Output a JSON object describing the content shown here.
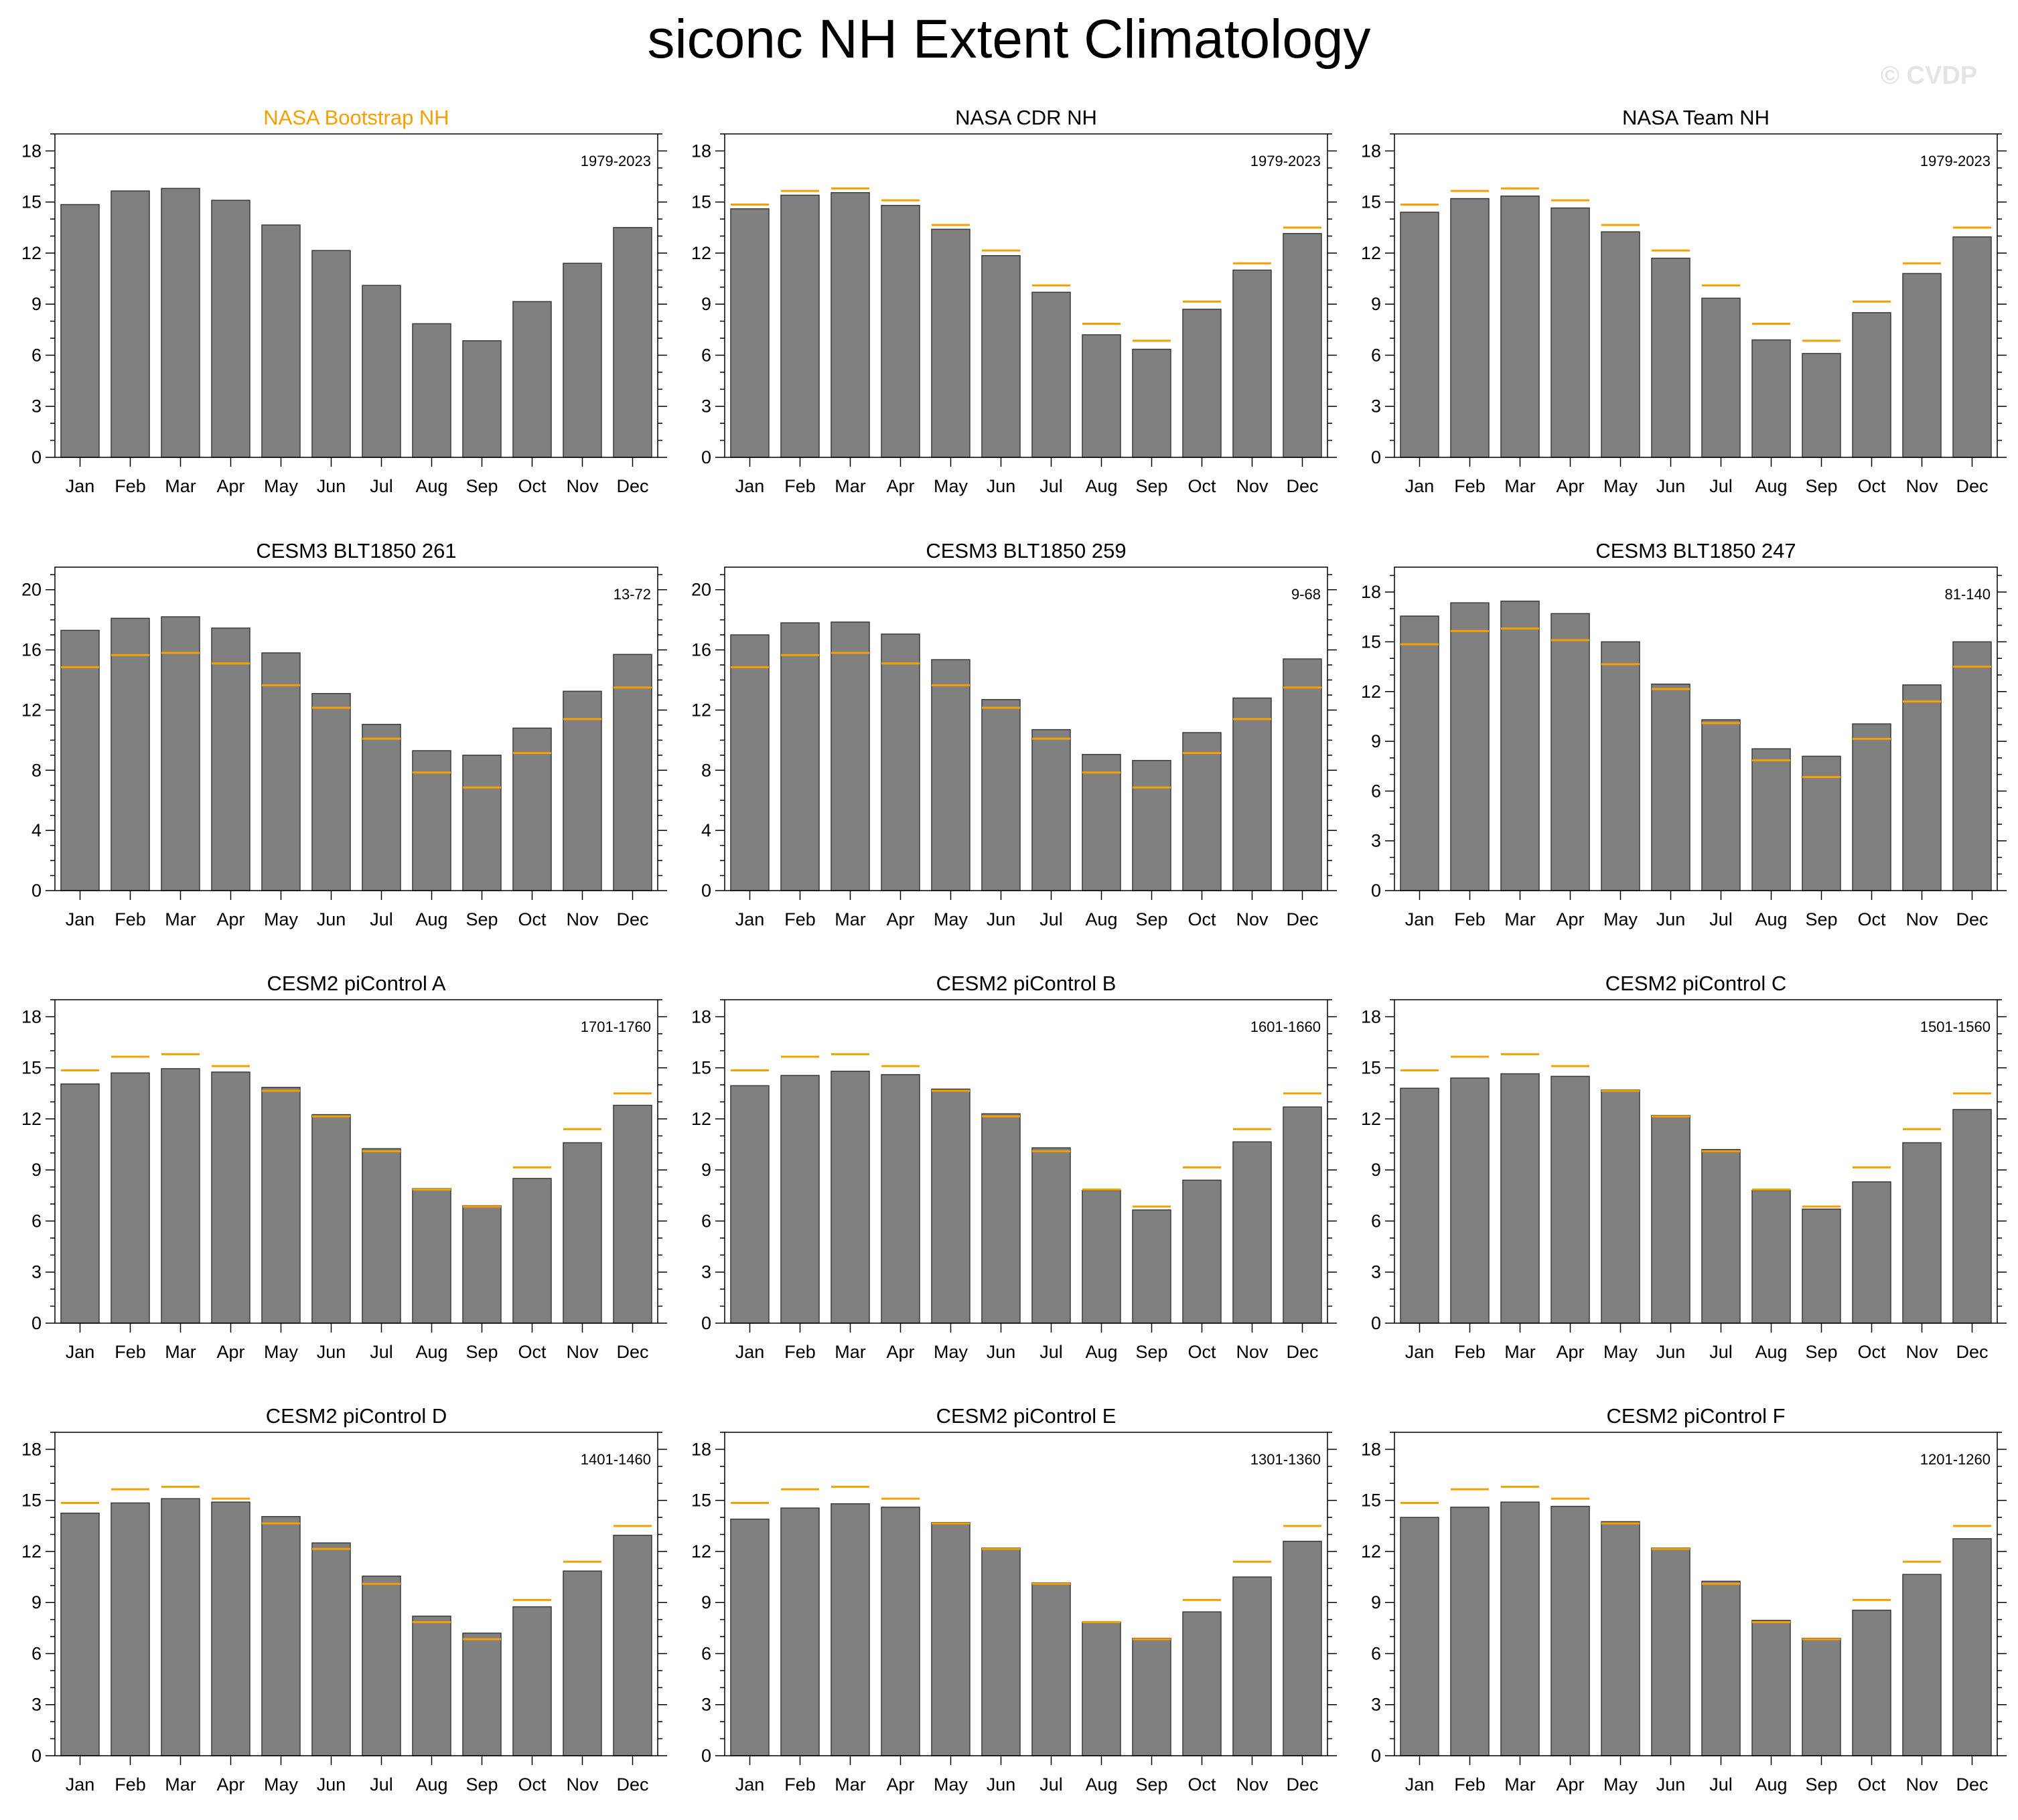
{
  "title": "siconc NH Extent Climatology",
  "watermark": "© CVDP",
  "colors": {
    "bar": "#808080",
    "bar_edge": "#3a3a3a",
    "reference": "#f5a000",
    "highlight_title": "#f5a000",
    "text": "#000000"
  },
  "chart_data": [
    {
      "type": "bar",
      "title": "NASA Bootstrap NH",
      "title_highlight": true,
      "period": "1979-2023",
      "categories": [
        "Jan",
        "Feb",
        "Mar",
        "Apr",
        "May",
        "Jun",
        "Jul",
        "Aug",
        "Sep",
        "Oct",
        "Nov",
        "Dec"
      ],
      "values": [
        14.85,
        15.65,
        15.8,
        15.1,
        13.65,
        12.15,
        10.1,
        7.85,
        6.85,
        9.15,
        11.4,
        13.5
      ],
      "reference": null,
      "ylim": [
        0,
        19
      ],
      "yticks": [
        0,
        3,
        6,
        9,
        12,
        15,
        18
      ],
      "yminor": 1
    },
    {
      "type": "bar",
      "title": "NASA CDR NH",
      "period": "1979-2023",
      "categories": [
        "Jan",
        "Feb",
        "Mar",
        "Apr",
        "May",
        "Jun",
        "Jul",
        "Aug",
        "Sep",
        "Oct",
        "Nov",
        "Dec"
      ],
      "values": [
        14.6,
        15.4,
        15.55,
        14.8,
        13.4,
        11.85,
        9.7,
        7.2,
        6.35,
        8.7,
        11.0,
        13.15
      ],
      "reference": [
        14.85,
        15.65,
        15.8,
        15.1,
        13.65,
        12.15,
        10.1,
        7.85,
        6.85,
        9.15,
        11.4,
        13.5
      ],
      "ylim": [
        0,
        19
      ],
      "yticks": [
        0,
        3,
        6,
        9,
        12,
        15,
        18
      ],
      "yminor": 1
    },
    {
      "type": "bar",
      "title": "NASA Team NH",
      "period": "1979-2023",
      "categories": [
        "Jan",
        "Feb",
        "Mar",
        "Apr",
        "May",
        "Jun",
        "Jul",
        "Aug",
        "Sep",
        "Oct",
        "Nov",
        "Dec"
      ],
      "values": [
        14.4,
        15.2,
        15.35,
        14.65,
        13.25,
        11.7,
        9.35,
        6.9,
        6.1,
        8.5,
        10.8,
        12.95
      ],
      "reference": [
        14.85,
        15.65,
        15.8,
        15.1,
        13.65,
        12.15,
        10.1,
        7.85,
        6.85,
        9.15,
        11.4,
        13.5
      ],
      "ylim": [
        0,
        19
      ],
      "yticks": [
        0,
        3,
        6,
        9,
        12,
        15,
        18
      ],
      "yminor": 1
    },
    {
      "type": "bar",
      "title": "CESM3 BLT1850 261",
      "period": "13-72",
      "categories": [
        "Jan",
        "Feb",
        "Mar",
        "Apr",
        "May",
        "Jun",
        "Jul",
        "Aug",
        "Sep",
        "Oct",
        "Nov",
        "Dec"
      ],
      "values": [
        17.3,
        18.1,
        18.2,
        17.45,
        15.8,
        13.1,
        11.05,
        9.3,
        9.0,
        10.8,
        13.25,
        15.7
      ],
      "reference": [
        14.85,
        15.65,
        15.8,
        15.1,
        13.65,
        12.15,
        10.1,
        7.85,
        6.85,
        9.15,
        11.4,
        13.5
      ],
      "ylim": [
        0,
        21.5
      ],
      "yticks": [
        0,
        4,
        8,
        12,
        16,
        20
      ],
      "yminor": 1
    },
    {
      "type": "bar",
      "title": "CESM3 BLT1850 259",
      "period": "9-68",
      "categories": [
        "Jan",
        "Feb",
        "Mar",
        "Apr",
        "May",
        "Jun",
        "Jul",
        "Aug",
        "Sep",
        "Oct",
        "Nov",
        "Dec"
      ],
      "values": [
        17.0,
        17.8,
        17.85,
        17.05,
        15.35,
        12.7,
        10.7,
        9.05,
        8.65,
        10.5,
        12.8,
        15.4
      ],
      "reference": [
        14.85,
        15.65,
        15.8,
        15.1,
        13.65,
        12.15,
        10.1,
        7.85,
        6.85,
        9.15,
        11.4,
        13.5
      ],
      "ylim": [
        0,
        21.5
      ],
      "yticks": [
        0,
        4,
        8,
        12,
        16,
        20
      ],
      "yminor": 1
    },
    {
      "type": "bar",
      "title": "CESM3 BLT1850 247",
      "period": "81-140",
      "categories": [
        "Jan",
        "Feb",
        "Mar",
        "Apr",
        "May",
        "Jun",
        "Jul",
        "Aug",
        "Sep",
        "Oct",
        "Nov",
        "Dec"
      ],
      "values": [
        16.55,
        17.35,
        17.45,
        16.7,
        15.0,
        12.45,
        10.3,
        8.55,
        8.1,
        10.05,
        12.4,
        15.0
      ],
      "reference": [
        14.85,
        15.65,
        15.8,
        15.1,
        13.65,
        12.15,
        10.1,
        7.85,
        6.85,
        9.15,
        11.4,
        13.5
      ],
      "ylim": [
        0,
        19.5
      ],
      "yticks": [
        0,
        3,
        6,
        9,
        12,
        15,
        18
      ],
      "yminor": 1
    },
    {
      "type": "bar",
      "title": "CESM2 piControl A",
      "period": "1701-1760",
      "categories": [
        "Jan",
        "Feb",
        "Mar",
        "Apr",
        "May",
        "Jun",
        "Jul",
        "Aug",
        "Sep",
        "Oct",
        "Nov",
        "Dec"
      ],
      "values": [
        14.05,
        14.7,
        14.95,
        14.75,
        13.85,
        12.25,
        10.25,
        7.9,
        6.9,
        8.5,
        10.6,
        12.8
      ],
      "reference": [
        14.85,
        15.65,
        15.8,
        15.1,
        13.65,
        12.15,
        10.1,
        7.85,
        6.85,
        9.15,
        11.4,
        13.5
      ],
      "ylim": [
        0,
        19
      ],
      "yticks": [
        0,
        3,
        6,
        9,
        12,
        15,
        18
      ],
      "yminor": 1
    },
    {
      "type": "bar",
      "title": "CESM2 piControl B",
      "period": "1601-1660",
      "categories": [
        "Jan",
        "Feb",
        "Mar",
        "Apr",
        "May",
        "Jun",
        "Jul",
        "Aug",
        "Sep",
        "Oct",
        "Nov",
        "Dec"
      ],
      "values": [
        13.95,
        14.55,
        14.8,
        14.6,
        13.75,
        12.3,
        10.3,
        7.8,
        6.65,
        8.4,
        10.65,
        12.7
      ],
      "reference": [
        14.85,
        15.65,
        15.8,
        15.1,
        13.65,
        12.15,
        10.1,
        7.85,
        6.85,
        9.15,
        11.4,
        13.5
      ],
      "ylim": [
        0,
        19
      ],
      "yticks": [
        0,
        3,
        6,
        9,
        12,
        15,
        18
      ],
      "yminor": 1
    },
    {
      "type": "bar",
      "title": "CESM2 piControl C",
      "period": "1501-1560",
      "categories": [
        "Jan",
        "Feb",
        "Mar",
        "Apr",
        "May",
        "Jun",
        "Jul",
        "Aug",
        "Sep",
        "Oct",
        "Nov",
        "Dec"
      ],
      "values": [
        13.8,
        14.4,
        14.65,
        14.5,
        13.7,
        12.2,
        10.2,
        7.8,
        6.7,
        8.3,
        10.6,
        12.55
      ],
      "reference": [
        14.85,
        15.65,
        15.8,
        15.1,
        13.65,
        12.15,
        10.1,
        7.85,
        6.85,
        9.15,
        11.4,
        13.5
      ],
      "ylim": [
        0,
        19
      ],
      "yticks": [
        0,
        3,
        6,
        9,
        12,
        15,
        18
      ],
      "yminor": 1
    },
    {
      "type": "bar",
      "title": "CESM2 piControl D",
      "period": "1401-1460",
      "categories": [
        "Jan",
        "Feb",
        "Mar",
        "Apr",
        "May",
        "Jun",
        "Jul",
        "Aug",
        "Sep",
        "Oct",
        "Nov",
        "Dec"
      ],
      "values": [
        14.25,
        14.85,
        15.1,
        14.9,
        14.05,
        12.5,
        10.55,
        8.2,
        7.2,
        8.75,
        10.85,
        12.95
      ],
      "reference": [
        14.85,
        15.65,
        15.8,
        15.1,
        13.65,
        12.15,
        10.1,
        7.85,
        6.85,
        9.15,
        11.4,
        13.5
      ],
      "ylim": [
        0,
        19
      ],
      "yticks": [
        0,
        3,
        6,
        9,
        12,
        15,
        18
      ],
      "yminor": 1
    },
    {
      "type": "bar",
      "title": "CESM2 piControl E",
      "period": "1301-1360",
      "categories": [
        "Jan",
        "Feb",
        "Mar",
        "Apr",
        "May",
        "Jun",
        "Jul",
        "Aug",
        "Sep",
        "Oct",
        "Nov",
        "Dec"
      ],
      "values": [
        13.9,
        14.55,
        14.8,
        14.6,
        13.7,
        12.2,
        10.15,
        7.85,
        6.9,
        8.45,
        10.5,
        12.6
      ],
      "reference": [
        14.85,
        15.65,
        15.8,
        15.1,
        13.65,
        12.15,
        10.1,
        7.85,
        6.85,
        9.15,
        11.4,
        13.5
      ],
      "ylim": [
        0,
        19
      ],
      "yticks": [
        0,
        3,
        6,
        9,
        12,
        15,
        18
      ],
      "yminor": 1
    },
    {
      "type": "bar",
      "title": "CESM2 piControl F",
      "period": "1201-1260",
      "categories": [
        "Jan",
        "Feb",
        "Mar",
        "Apr",
        "May",
        "Jun",
        "Jul",
        "Aug",
        "Sep",
        "Oct",
        "Nov",
        "Dec"
      ],
      "values": [
        14.0,
        14.6,
        14.9,
        14.65,
        13.75,
        12.2,
        10.25,
        7.95,
        6.9,
        8.55,
        10.65,
        12.75
      ],
      "reference": [
        14.85,
        15.65,
        15.8,
        15.1,
        13.65,
        12.15,
        10.1,
        7.85,
        6.85,
        9.15,
        11.4,
        13.5
      ],
      "ylim": [
        0,
        19
      ],
      "yticks": [
        0,
        3,
        6,
        9,
        12,
        15,
        18
      ],
      "yminor": 1
    }
  ]
}
